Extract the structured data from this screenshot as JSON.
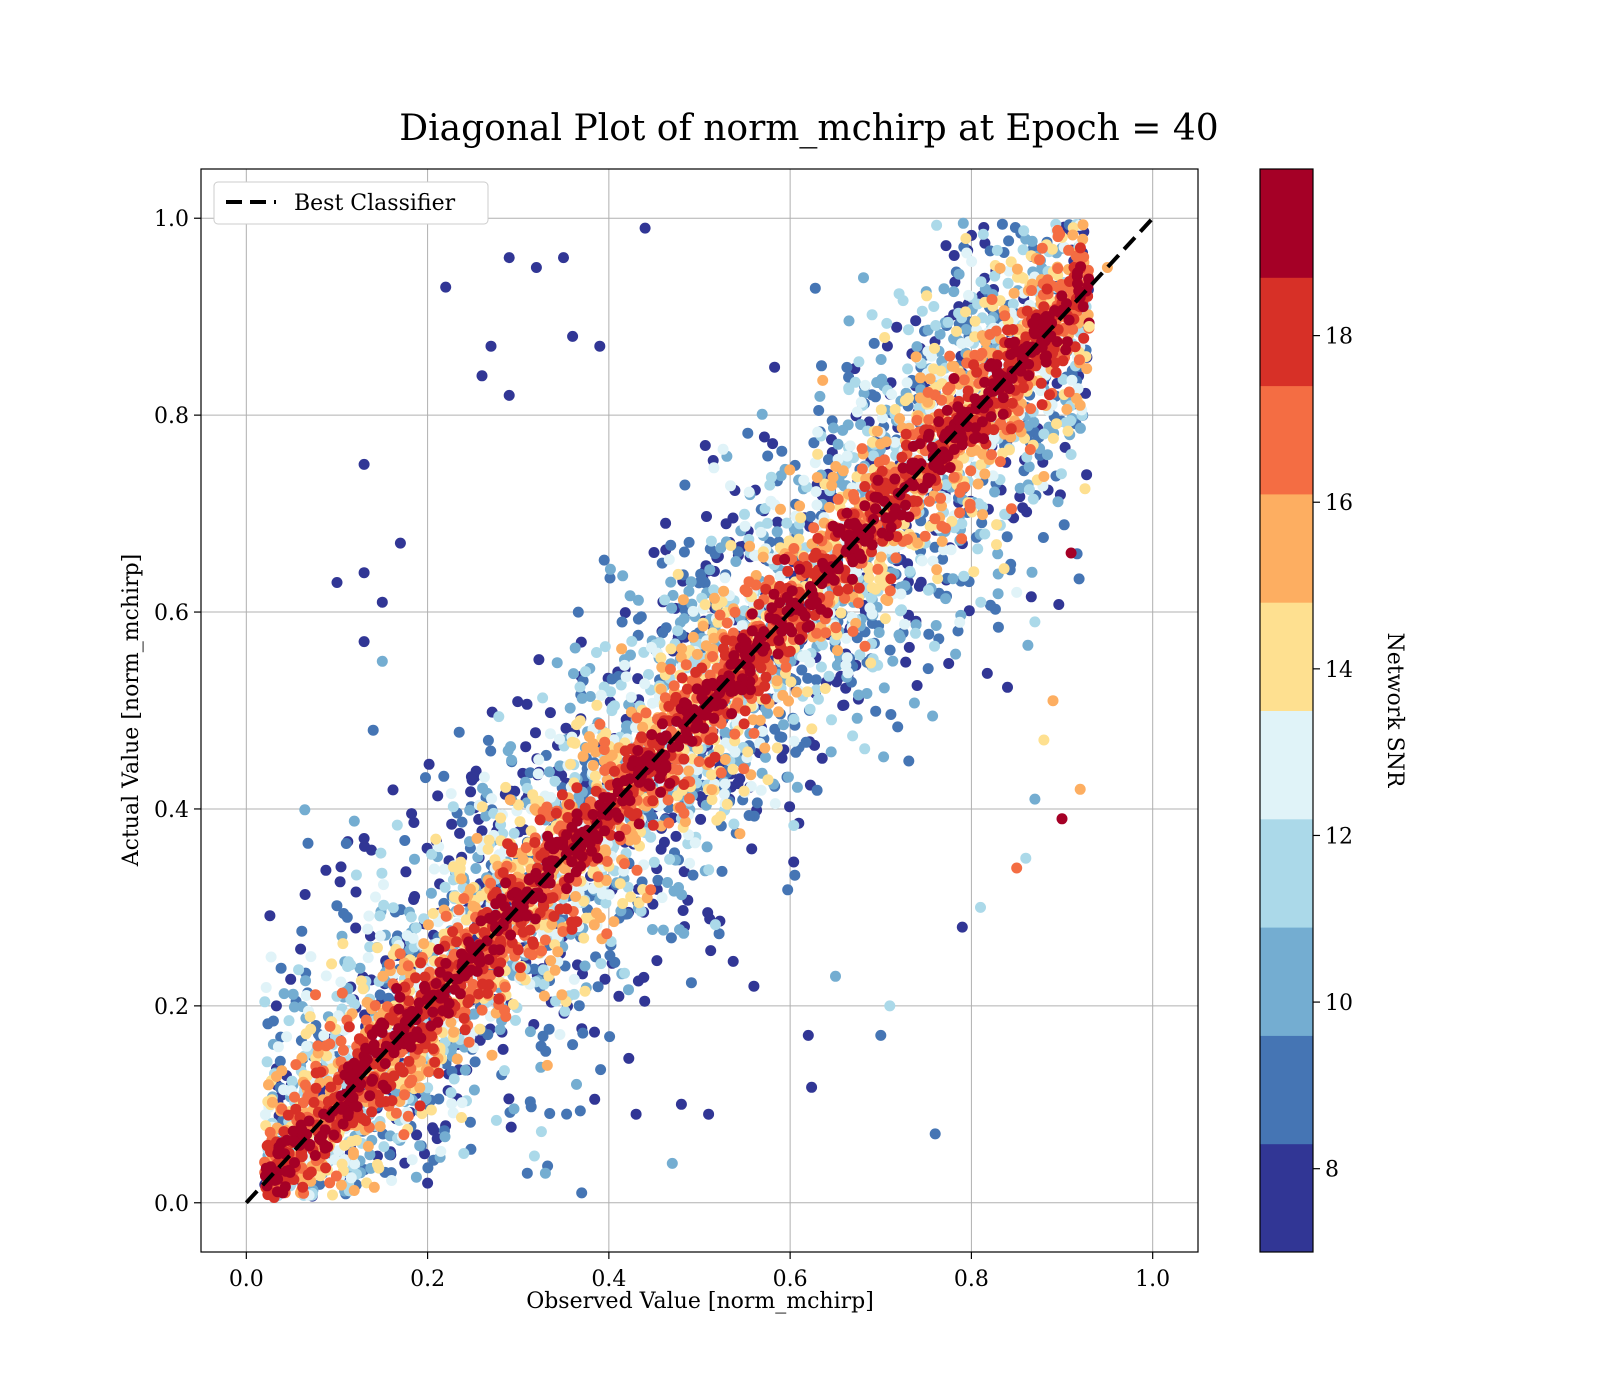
{
  "chart_data": {
    "type": "scatter",
    "title": "Diagonal Plot of norm_mchirp at Epoch = 40",
    "xlabel": "Observed Value [norm_mchirp]",
    "ylabel": "Actual Value [norm_mchirp]",
    "xlim": [
      -0.05,
      1.05
    ],
    "ylim": [
      -0.05,
      1.05
    ],
    "x_ticks": [
      "0.0",
      "0.2",
      "0.4",
      "0.6",
      "0.8",
      "1.0"
    ],
    "y_ticks": [
      "0.0",
      "0.2",
      "0.4",
      "0.6",
      "0.8",
      "1.0"
    ],
    "grid": true,
    "legend": {
      "placement": "upper-left",
      "entries": [
        {
          "label": "Best Classifier",
          "style": "black dashed line"
        }
      ]
    },
    "reference_line": {
      "x": [
        0,
        1
      ],
      "y": [
        0,
        1
      ],
      "color": "#000000",
      "style": "dashed"
    },
    "colorbar": {
      "label": "Network SNR",
      "range": [
        7,
        20
      ],
      "ticks": [
        "8",
        "10",
        "12",
        "14",
        "16",
        "18"
      ],
      "tick_values": [
        8,
        10,
        12,
        14,
        16,
        18
      ],
      "colormap": "RdYlBu_r",
      "colors": [
        "#313695",
        "#4575b4",
        "#74add1",
        "#abd9e9",
        "#e0f3f8",
        "#fee090",
        "#fdae61",
        "#f46d43",
        "#d73027",
        "#a50026"
      ]
    },
    "points_description_note_free": null,
    "series": [
      {
        "points": [
          [
            0.13,
            0.75,
            8
          ],
          [
            0.22,
            0.93,
            8
          ],
          [
            0.29,
            0.96,
            8
          ],
          [
            0.32,
            0.95,
            8
          ],
          [
            0.35,
            0.96,
            8
          ],
          [
            0.44,
            0.99,
            8
          ],
          [
            0.1,
            0.63,
            8
          ],
          [
            0.13,
            0.64,
            8
          ],
          [
            0.15,
            0.61,
            8
          ],
          [
            0.17,
            0.67,
            8
          ],
          [
            0.13,
            0.57,
            8
          ],
          [
            0.14,
            0.48,
            9
          ],
          [
            0.13,
            0.37,
            8
          ],
          [
            0.15,
            0.55,
            10
          ],
          [
            0.26,
            0.84,
            8
          ],
          [
            0.27,
            0.87,
            8
          ],
          [
            0.29,
            0.82,
            8
          ],
          [
            0.36,
            0.88,
            8
          ],
          [
            0.39,
            0.87,
            8
          ],
          [
            0.76,
            0.07,
            9
          ],
          [
            0.7,
            0.17,
            9
          ],
          [
            0.62,
            0.17,
            8
          ],
          [
            0.47,
            0.04,
            10
          ],
          [
            0.48,
            0.1,
            8
          ],
          [
            0.51,
            0.09,
            8
          ],
          [
            0.43,
            0.09,
            8
          ],
          [
            0.9,
            0.39,
            19
          ],
          [
            0.92,
            0.42,
            16
          ],
          [
            0.89,
            0.51,
            16
          ],
          [
            0.91,
            0.66,
            19
          ],
          [
            0.85,
            0.34,
            17
          ],
          [
            0.86,
            0.35,
            12
          ],
          [
            0.87,
            0.41,
            10
          ],
          [
            0.81,
            0.3,
            12
          ],
          [
            0.79,
            0.28,
            8
          ],
          [
            0.71,
            0.2,
            11
          ],
          [
            0.65,
            0.23,
            10
          ],
          [
            0.56,
            0.22,
            8
          ],
          [
            0.33,
            0.03,
            10
          ],
          [
            0.31,
            0.03,
            9
          ],
          [
            0.2,
            0.02,
            8
          ],
          [
            0.24,
            0.05,
            11
          ],
          [
            0.37,
            0.01,
            9
          ],
          [
            0.95,
            0.95,
            15
          ],
          [
            0.93,
            0.89,
            14
          ],
          [
            0.92,
            0.81,
            16
          ],
          [
            0.91,
            0.76,
            12
          ],
          [
            0.85,
            0.62,
            13
          ],
          [
            0.87,
            0.59,
            11
          ],
          [
            0.88,
            0.47,
            14
          ]
        ]
      }
    ]
  }
}
